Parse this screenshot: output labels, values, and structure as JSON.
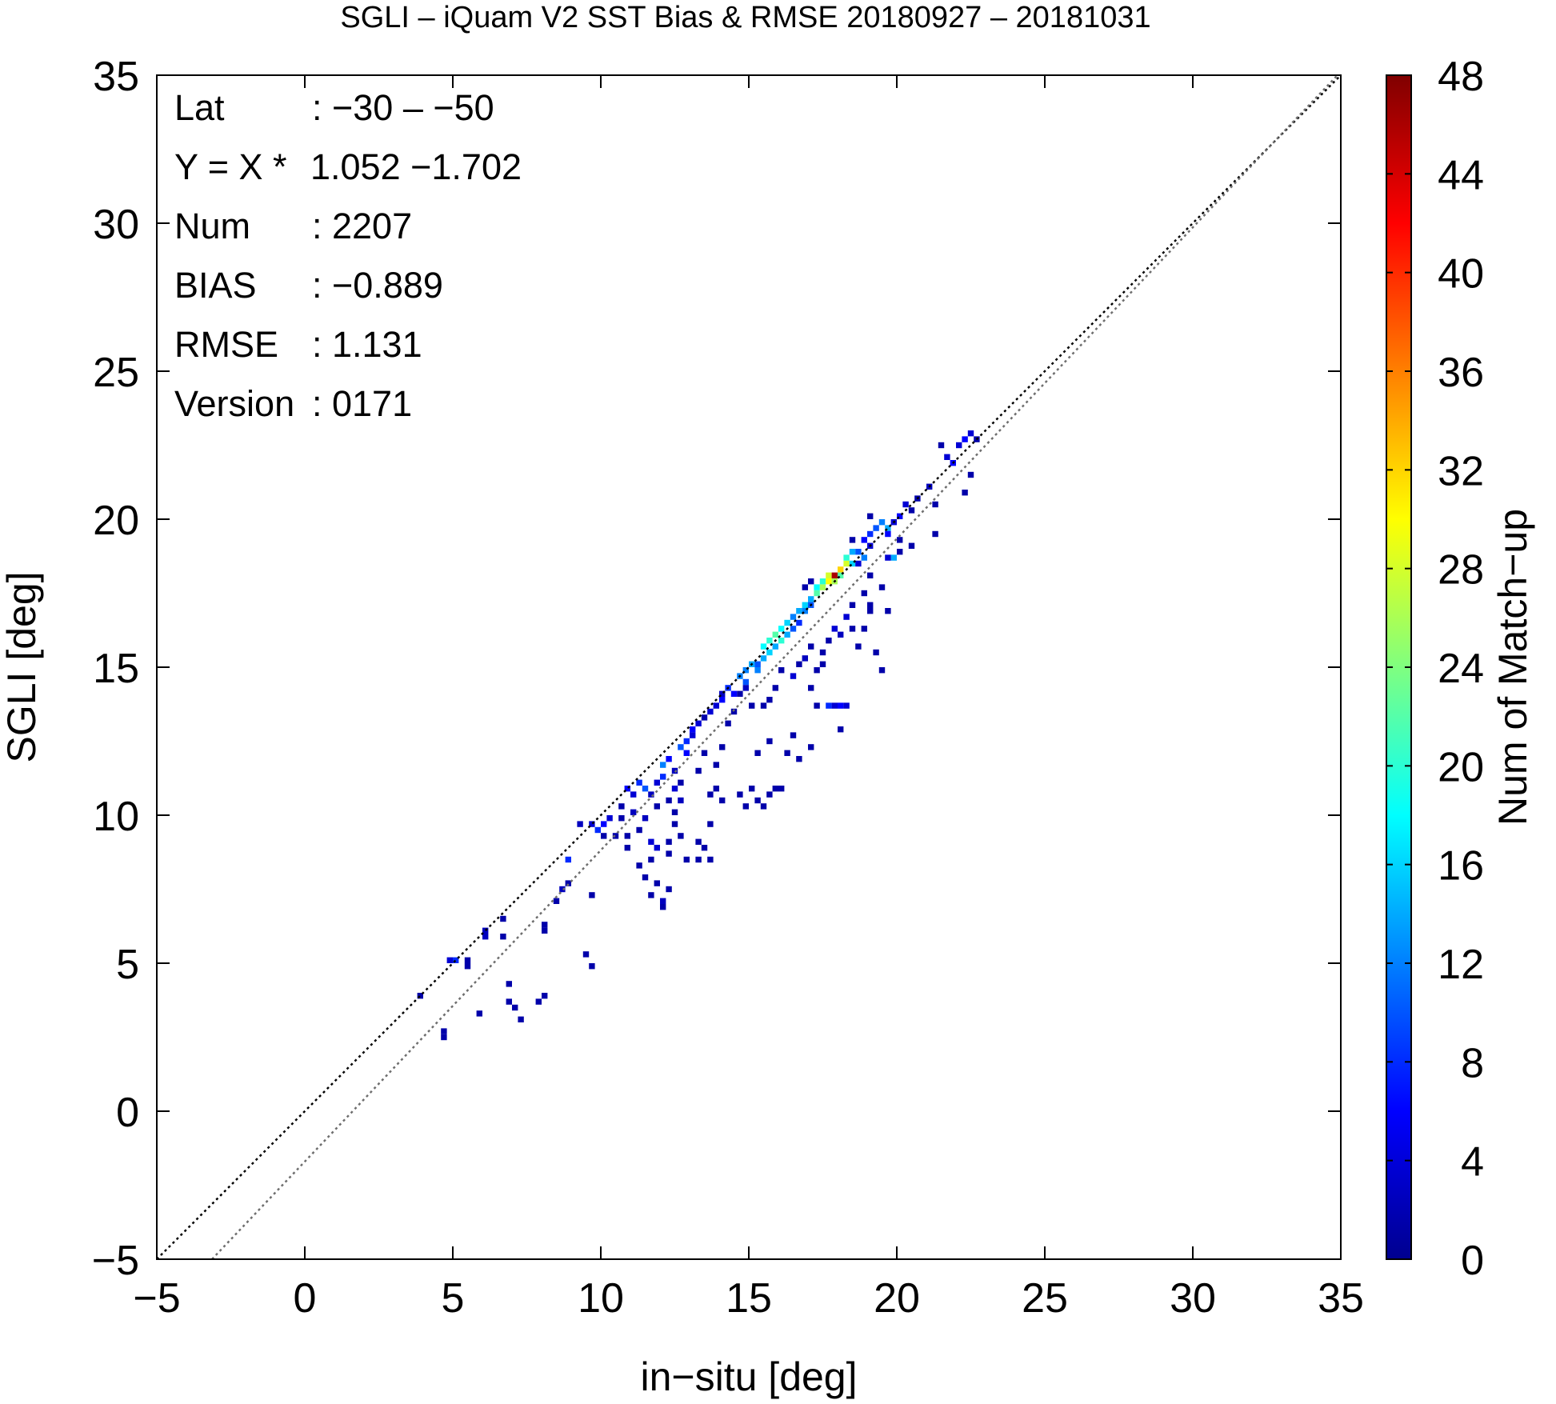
{
  "chart_data": {
    "type": "heatmap",
    "title": "SGLI – iQuam V2 SST Bias & RMSE 20180927 – 20181031",
    "xlabel": "in−situ [deg]",
    "ylabel": "SGLI [deg]",
    "xlim": [
      -5,
      35
    ],
    "ylim": [
      -5,
      35
    ],
    "xticks": [
      -5,
      0,
      5,
      10,
      15,
      20,
      25,
      30,
      35
    ],
    "yticks": [
      -5,
      0,
      5,
      10,
      15,
      20,
      25,
      30,
      35
    ],
    "xtick_labels": [
      "−5",
      "0",
      "5",
      "10",
      "15",
      "20",
      "25",
      "30",
      "35"
    ],
    "ytick_labels": [
      "−5",
      "0",
      "5",
      "10",
      "15",
      "20",
      "25",
      "30",
      "35"
    ],
    "grid": false,
    "bin_size": 0.2,
    "colorbar": {
      "label": "Num of Match−up",
      "min": 0,
      "max": 48,
      "ticks": [
        0,
        4,
        8,
        12,
        16,
        20,
        24,
        28,
        32,
        36,
        40,
        44,
        48
      ],
      "colormap": "jet"
    },
    "lines": [
      {
        "kind": "one-to-one",
        "slope": 1.0,
        "intercept": 0.0,
        "color": "#000000",
        "dash": "dotted"
      },
      {
        "kind": "regression",
        "slope": 1.052,
        "intercept": -1.702,
        "color": "#6e6e6e",
        "dash": "dotted"
      }
    ],
    "stats": [
      {
        "label": "Lat",
        "value": ": −30 – −50"
      },
      {
        "label": "Y = X *",
        "value": "1.052 −1.702"
      },
      {
        "label": "Num",
        "value": ": 2207"
      },
      {
        "label": "BIAS",
        "value": ": −0.889"
      },
      {
        "label": "RMSE",
        "value": ": 1.131"
      },
      {
        "label": "Version",
        "value": ": 0171"
      }
    ],
    "cells": [
      [
        3.8,
        3.8,
        2
      ],
      [
        4.6,
        2.4,
        2
      ],
      [
        4.6,
        2.6,
        2
      ],
      [
        4.8,
        5.0,
        4
      ],
      [
        5.0,
        5.0,
        8
      ],
      [
        5.4,
        4.8,
        2
      ],
      [
        5.4,
        5.0,
        2
      ],
      [
        5.8,
        3.2,
        2
      ],
      [
        6.0,
        5.8,
        3
      ],
      [
        6.0,
        6.0,
        3
      ],
      [
        6.6,
        6.4,
        2
      ],
      [
        6.6,
        5.8,
        2
      ],
      [
        6.8,
        4.2,
        2
      ],
      [
        6.8,
        3.6,
        2
      ],
      [
        7.0,
        3.4,
        2
      ],
      [
        7.2,
        3.0,
        2
      ],
      [
        7.8,
        3.6,
        2
      ],
      [
        8.0,
        3.8,
        2
      ],
      [
        8.0,
        6.0,
        2
      ],
      [
        8.0,
        6.2,
        2
      ],
      [
        8.4,
        7.0,
        2
      ],
      [
        8.6,
        7.4,
        3
      ],
      [
        8.8,
        7.6,
        2
      ],
      [
        8.8,
        8.4,
        8
      ],
      [
        9.2,
        9.6,
        3
      ],
      [
        9.6,
        7.2,
        2
      ],
      [
        9.4,
        5.2,
        2
      ],
      [
        9.6,
        4.8,
        2
      ],
      [
        9.6,
        9.6,
        4
      ],
      [
        9.8,
        9.4,
        8
      ],
      [
        10.0,
        9.6,
        6
      ],
      [
        10.2,
        9.8,
        4
      ],
      [
        10.0,
        9.2,
        2
      ],
      [
        10.4,
        9.2,
        2
      ],
      [
        10.6,
        9.8,
        2
      ],
      [
        10.6,
        10.2,
        2
      ],
      [
        10.8,
        10.8,
        6
      ],
      [
        11.0,
        10.6,
        4
      ],
      [
        11.2,
        11.0,
        8
      ],
      [
        11.4,
        10.8,
        10
      ],
      [
        11.0,
        10.0,
        3
      ],
      [
        11.2,
        9.4,
        2
      ],
      [
        11.4,
        9.8,
        3
      ],
      [
        11.6,
        9.0,
        4
      ],
      [
        11.6,
        8.4,
        2
      ],
      [
        11.8,
        8.8,
        4
      ],
      [
        11.6,
        10.6,
        3
      ],
      [
        11.8,
        10.2,
        2
      ],
      [
        11.8,
        11.0,
        4
      ],
      [
        12.0,
        11.6,
        12
      ],
      [
        12.0,
        11.2,
        8
      ],
      [
        12.2,
        11.8,
        6
      ],
      [
        12.2,
        10.4,
        2
      ],
      [
        12.4,
        11.4,
        3
      ],
      [
        12.4,
        10.8,
        4
      ],
      [
        12.6,
        11.0,
        2
      ],
      [
        11.4,
        7.8,
        2
      ],
      [
        11.6,
        7.2,
        2
      ],
      [
        11.8,
        7.6,
        2
      ],
      [
        12.0,
        7.0,
        3
      ],
      [
        12.2,
        7.4,
        2
      ],
      [
        12.0,
        6.8,
        2
      ],
      [
        12.4,
        10.0,
        2
      ],
      [
        12.4,
        9.6,
        2
      ],
      [
        12.6,
        10.4,
        3
      ],
      [
        12.2,
        9.0,
        2
      ],
      [
        12.2,
        8.6,
        2
      ],
      [
        12.6,
        12.2,
        10
      ],
      [
        12.8,
        12.0,
        6
      ],
      [
        12.8,
        12.4,
        8
      ],
      [
        13.0,
        12.6,
        4
      ],
      [
        13.0,
        12.8,
        6
      ],
      [
        13.2,
        13.0,
        4
      ],
      [
        13.4,
        13.2,
        2
      ],
      [
        13.4,
        12.0,
        2
      ],
      [
        13.2,
        11.4,
        2
      ],
      [
        13.6,
        10.6,
        2
      ],
      [
        13.8,
        10.8,
        2
      ],
      [
        14.0,
        10.4,
        2
      ],
      [
        13.2,
        9.0,
        2
      ],
      [
        13.4,
        8.8,
        2
      ],
      [
        13.6,
        9.6,
        2
      ],
      [
        13.6,
        13.4,
        4
      ],
      [
        13.8,
        13.6,
        4
      ],
      [
        14.0,
        13.8,
        6
      ],
      [
        14.0,
        14.0,
        3
      ],
      [
        14.2,
        14.2,
        8
      ],
      [
        14.4,
        14.0,
        6
      ],
      [
        14.6,
        14.6,
        12
      ],
      [
        14.8,
        14.4,
        10
      ],
      [
        14.8,
        14.8,
        12
      ],
      [
        15.0,
        15.0,
        14
      ],
      [
        15.2,
        14.8,
        12
      ],
      [
        15.2,
        15.0,
        10
      ],
      [
        15.4,
        15.2,
        14
      ],
      [
        15.4,
        15.6,
        18
      ],
      [
        15.6,
        15.4,
        16
      ],
      [
        15.6,
        15.8,
        20
      ],
      [
        15.8,
        15.6,
        14
      ],
      [
        15.8,
        16.0,
        22
      ],
      [
        16.0,
        16.2,
        18
      ],
      [
        16.0,
        15.8,
        20
      ],
      [
        16.2,
        16.4,
        16
      ],
      [
        16.2,
        16.0,
        14
      ],
      [
        16.4,
        16.6,
        12
      ],
      [
        16.4,
        16.2,
        10
      ],
      [
        16.6,
        16.8,
        14
      ],
      [
        16.6,
        16.4,
        8
      ],
      [
        16.8,
        17.0,
        16
      ],
      [
        16.8,
        16.8,
        12
      ],
      [
        17.0,
        17.2,
        14
      ],
      [
        17.0,
        17.0,
        10
      ],
      [
        17.2,
        17.4,
        22
      ],
      [
        17.2,
        17.6,
        18
      ],
      [
        17.4,
        17.6,
        26
      ],
      [
        17.4,
        17.8,
        20
      ],
      [
        17.6,
        17.8,
        30
      ],
      [
        17.6,
        18.0,
        28
      ],
      [
        17.8,
        18.0,
        46
      ],
      [
        17.8,
        17.8,
        26
      ],
      [
        18.0,
        18.2,
        32
      ],
      [
        18.0,
        18.0,
        22
      ],
      [
        18.2,
        18.4,
        28
      ],
      [
        18.2,
        18.6,
        20
      ],
      [
        18.4,
        18.4,
        16
      ],
      [
        18.4,
        18.8,
        14
      ],
      [
        18.6,
        18.8,
        10
      ],
      [
        18.6,
        18.4,
        4
      ],
      [
        18.8,
        19.2,
        6
      ],
      [
        18.8,
        18.6,
        12
      ],
      [
        19.0,
        19.4,
        8
      ],
      [
        19.0,
        19.0,
        4
      ],
      [
        19.2,
        19.6,
        10
      ],
      [
        19.4,
        19.8,
        12
      ],
      [
        19.6,
        19.6,
        14
      ],
      [
        19.6,
        19.4,
        6
      ],
      [
        19.8,
        19.8,
        4
      ],
      [
        20.0,
        20.0,
        6
      ],
      [
        20.2,
        20.4,
        4
      ],
      [
        20.4,
        20.2,
        2
      ],
      [
        20.6,
        20.6,
        2
      ],
      [
        21.0,
        21.0,
        3
      ],
      [
        21.2,
        20.4,
        2
      ],
      [
        21.4,
        22.4,
        2
      ],
      [
        21.6,
        22.0,
        4
      ],
      [
        21.8,
        21.8,
        6
      ],
      [
        22.0,
        22.4,
        4
      ],
      [
        22.2,
        22.6,
        6
      ],
      [
        22.4,
        22.8,
        4
      ],
      [
        22.6,
        22.6,
        2
      ],
      [
        22.2,
        20.8,
        2
      ],
      [
        22.4,
        21.4,
        2
      ],
      [
        14.8,
        14.2,
        3
      ],
      [
        14.6,
        14.0,
        2
      ],
      [
        14.4,
        13.4,
        2
      ],
      [
        15.0,
        13.6,
        2
      ],
      [
        15.4,
        13.6,
        2
      ],
      [
        15.6,
        13.8,
        2
      ],
      [
        15.8,
        14.2,
        2
      ],
      [
        15.2,
        12.0,
        2
      ],
      [
        15.6,
        12.4,
        2
      ],
      [
        16.2,
        12.0,
        2
      ],
      [
        16.4,
        12.6,
        2
      ],
      [
        16.6,
        11.8,
        2
      ],
      [
        17.0,
        12.2,
        2
      ],
      [
        16.0,
        14.8,
        2
      ],
      [
        16.4,
        14.6,
        4
      ],
      [
        16.6,
        15.0,
        2
      ],
      [
        16.8,
        15.2,
        3
      ],
      [
        17.0,
        15.6,
        2
      ],
      [
        17.2,
        14.8,
        2
      ],
      [
        17.0,
        14.2,
        2
      ],
      [
        17.2,
        13.6,
        2
      ],
      [
        17.6,
        13.6,
        8
      ],
      [
        17.8,
        13.6,
        4
      ],
      [
        18.0,
        13.6,
        6
      ],
      [
        18.2,
        13.6,
        4
      ],
      [
        18.0,
        12.8,
        2
      ],
      [
        17.4,
        15.4,
        2
      ],
      [
        17.6,
        15.8,
        2
      ],
      [
        17.8,
        16.2,
        4
      ],
      [
        18.0,
        16.0,
        3
      ],
      [
        18.2,
        16.6,
        4
      ],
      [
        18.4,
        16.2,
        2
      ],
      [
        18.4,
        17.0,
        2
      ],
      [
        18.6,
        15.6,
        2
      ],
      [
        18.8,
        16.2,
        2
      ],
      [
        18.8,
        17.4,
        2
      ],
      [
        19.0,
        17.0,
        2
      ],
      [
        19.2,
        15.4,
        2
      ],
      [
        19.4,
        14.8,
        2
      ],
      [
        19.8,
        18.6,
        14
      ],
      [
        19.6,
        18.6,
        4
      ],
      [
        20.0,
        18.8,
        2
      ],
      [
        19.0,
        18.0,
        2
      ],
      [
        19.0,
        16.8,
        2
      ],
      [
        19.4,
        17.6,
        2
      ],
      [
        19.6,
        16.8,
        2
      ],
      [
        20.0,
        19.2,
        2
      ],
      [
        20.4,
        19.0,
        2
      ],
      [
        21.2,
        19.4,
        2
      ],
      [
        14.2,
        13.0,
        2
      ],
      [
        14.0,
        12.2,
        2
      ],
      [
        13.8,
        11.6,
        2
      ],
      [
        14.6,
        10.6,
        2
      ],
      [
        14.8,
        10.2,
        2
      ],
      [
        15.0,
        10.8,
        2
      ],
      [
        15.2,
        10.4,
        2
      ],
      [
        15.4,
        10.2,
        2
      ],
      [
        15.6,
        10.6,
        2
      ],
      [
        15.8,
        10.8,
        2
      ],
      [
        16.0,
        10.8,
        2
      ],
      [
        17.4,
        15.0,
        2
      ],
      [
        16.8,
        17.6,
        2
      ],
      [
        17.0,
        17.8,
        2
      ],
      [
        18.4,
        19.2,
        2
      ],
      [
        19.0,
        20.0,
        2
      ],
      [
        12.6,
        9.2,
        2
      ],
      [
        12.8,
        8.4,
        2
      ],
      [
        13.2,
        8.4,
        2
      ],
      [
        13.6,
        8.4,
        2
      ],
      [
        10.8,
        9.2,
        2
      ],
      [
        11.2,
        8.2,
        2
      ],
      [
        10.8,
        8.8,
        2
      ]
    ]
  }
}
